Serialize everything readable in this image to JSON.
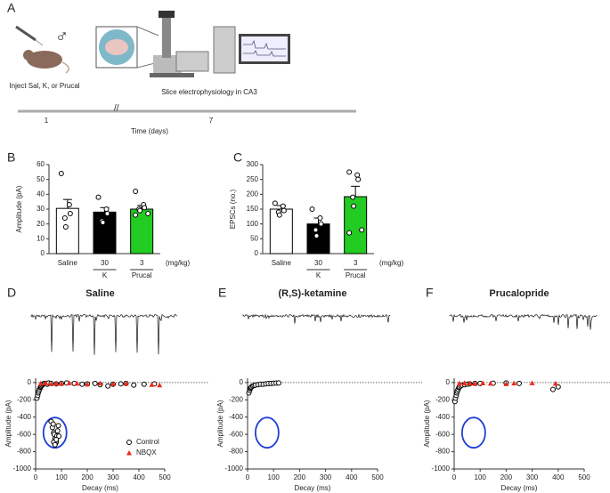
{
  "panel_labels": [
    "A",
    "B",
    "C",
    "D",
    "E",
    "F"
  ],
  "timeline": {
    "injection": "Inject Sal, K, or Prucal",
    "recording": "Slice electrophysiology in CA3",
    "ticks": [
      1,
      7
    ],
    "xlabel": "Time (days)"
  },
  "chart_data": [
    {
      "type": "bar",
      "ylabel": "Amplitude (pA)",
      "categories": [
        "Saline",
        "30",
        "3"
      ],
      "drug_labels": [
        "K",
        "Prucal"
      ],
      "unit": "(mg/kg)",
      "values": [
        30.5,
        28,
        30
      ],
      "errors": [
        6,
        3,
        2.5
      ],
      "colors": [
        "#ffffff",
        "#000000",
        "#22cc22"
      ],
      "points": [
        [
          54,
          33,
          27,
          24,
          18
        ],
        [
          38,
          30,
          27,
          22,
          21
        ],
        [
          42,
          33,
          31,
          30,
          29,
          27,
          26
        ]
      ],
      "ylim": [
        0,
        60
      ],
      "yticks": [
        0,
        10,
        20,
        30,
        40,
        50,
        60
      ]
    },
    {
      "type": "bar",
      "ylabel": "EPSCs (no.)",
      "categories": [
        "Saline",
        "30",
        "3"
      ],
      "drug_labels": [
        "K",
        "Prucal"
      ],
      "unit": "(mg/kg)",
      "values": [
        150,
        100,
        192
      ],
      "errors": [
        12,
        20,
        35
      ],
      "colors": [
        "#ffffff",
        "#000000",
        "#22cc22"
      ],
      "points": [
        [
          170,
          160,
          145,
          140,
          130
        ],
        [
          150,
          120,
          100,
          80,
          60
        ],
        [
          275,
          265,
          250,
          190,
          160,
          80,
          70
        ]
      ],
      "ylim": [
        0,
        300
      ],
      "yticks": [
        0,
        50,
        100,
        150,
        200,
        250,
        300
      ]
    },
    {
      "type": "scatter",
      "title": "Saline",
      "xlabel": "Decay (ms)",
      "ylabel": "Amplitude (pA)",
      "legend": "lower right",
      "xlim": [
        0,
        500
      ],
      "xticks": [
        0,
        100,
        200,
        300,
        400,
        500
      ],
      "ylim": [
        -1000,
        50
      ],
      "yticks": [
        -1000,
        -800,
        -600,
        -400,
        -200,
        0
      ],
      "series": [
        {
          "name": "Control",
          "marker": "circle",
          "color": "#000000",
          "x": [
            5,
            8,
            10,
            12,
            15,
            18,
            20,
            22,
            25,
            28,
            30,
            35,
            40,
            45,
            50,
            60,
            80,
            100,
            120,
            150,
            180,
            200,
            230,
            250,
            280,
            300,
            330,
            350,
            380,
            420,
            460,
            60,
            65,
            70,
            72,
            75,
            78,
            80,
            82,
            85,
            88,
            90,
            70,
            75,
            80,
            68
          ],
          "y": [
            -180,
            -150,
            -120,
            -100,
            -80,
            -60,
            -50,
            -40,
            -30,
            -20,
            -15,
            -10,
            -10,
            -20,
            -5,
            -10,
            -15,
            -10,
            -5,
            -10,
            -20,
            -15,
            -10,
            -25,
            -40,
            -20,
            -15,
            -10,
            -30,
            -20,
            -15,
            -450,
            -520,
            -580,
            -600,
            -650,
            -700,
            -680,
            -620,
            -560,
            -500,
            -620,
            -690,
            -720,
            -660,
            -480
          ]
        },
        {
          "name": "NBQX",
          "marker": "triangle",
          "color": "#ee2a1b",
          "x": [
            20,
            40,
            60,
            80,
            100,
            130,
            160,
            200,
            250,
            300,
            350,
            450,
            480
          ],
          "y": [
            -10,
            -5,
            -15,
            -8,
            -12,
            -5,
            -10,
            -20,
            -8,
            -15,
            -10,
            -25,
            -30
          ]
        }
      ]
    },
    {
      "type": "scatter",
      "title": "(R,S)-ketamine",
      "xlabel": "Decay (ms)",
      "ylabel": "Amplitude (pA)",
      "xlim": [
        0,
        500
      ],
      "xticks": [
        0,
        100,
        200,
        300,
        400,
        500
      ],
      "ylim": [
        -1000,
        50
      ],
      "yticks": [
        -1000,
        -800,
        -600,
        -400,
        -200,
        0
      ],
      "series": [
        {
          "marker": "circle",
          "color": "#000000",
          "x": [
            5,
            8,
            10,
            12,
            15,
            20,
            25,
            30,
            40,
            50,
            60,
            70,
            80,
            90,
            100,
            110,
            120
          ],
          "y": [
            -120,
            -90,
            -70,
            -60,
            -50,
            -40,
            -35,
            -30,
            -25,
            -20,
            -20,
            -15,
            -12,
            -10,
            -8,
            -6,
            -5
          ]
        }
      ]
    },
    {
      "type": "scatter",
      "title": "Prucalopride",
      "xlabel": "Decay (ms)",
      "ylabel": "Amplitude (pA)",
      "xlim": [
        0,
        500
      ],
      "xticks": [
        0,
        100,
        200,
        300,
        400,
        500
      ],
      "ylim": [
        -1000,
        50
      ],
      "yticks": [
        -1000,
        -800,
        -600,
        -400,
        -200,
        0
      ],
      "series": [
        {
          "marker": "circle",
          "color": "#000000",
          "x": [
            3,
            5,
            8,
            10,
            12,
            15,
            18,
            20,
            25,
            30,
            40,
            50,
            60,
            80,
            100,
            150,
            200,
            250,
            380,
            400
          ],
          "y": [
            -220,
            -180,
            -150,
            -120,
            -100,
            -80,
            -60,
            -50,
            -40,
            -30,
            -25,
            -20,
            -15,
            -10,
            -10,
            -8,
            -5,
            -10,
            -80,
            -50
          ]
        },
        {
          "marker": "triangle",
          "color": "#ee2a1b",
          "x": [
            20,
            40,
            60,
            80,
            110,
            140,
            200,
            230,
            300,
            390
          ],
          "y": [
            -10,
            -5,
            -8,
            -12,
            -6,
            -10,
            -15,
            -8,
            -5,
            -10
          ]
        }
      ]
    }
  ]
}
